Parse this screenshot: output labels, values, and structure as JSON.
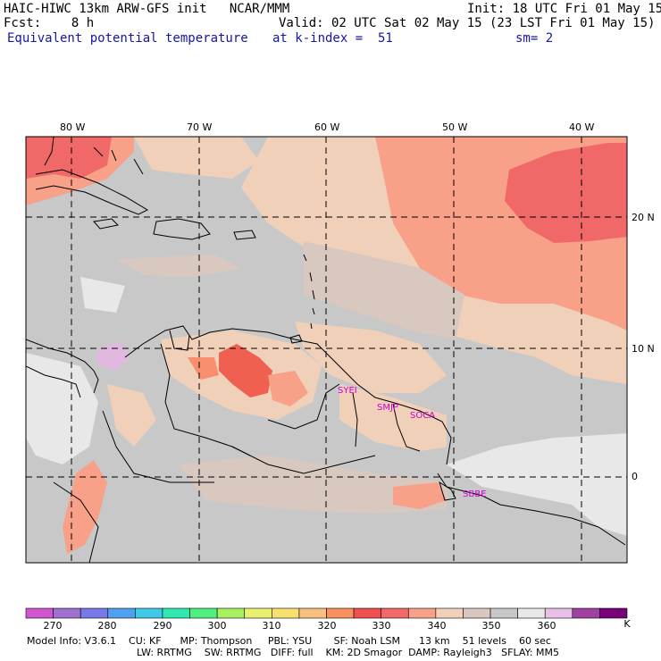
{
  "header": {
    "line1_left": "HAIC-HIWC 13km ARW-GFS init   NCAR/MMM",
    "line1_right": "Init: 18 UTC Fri 01 May 15",
    "line2_left": "Fcst:    8 h",
    "line2_right": "Valid: 02 UTC Sat 02 May 15 (23 LST Fri 01 May 15)",
    "field_name": "Equivalent potential temperature",
    "level": "at k-index =  51",
    "smoothing": "sm= 2"
  },
  "map": {
    "lon_labels": [
      "80 W",
      "70 W",
      "60 W",
      "50 W",
      "40 W"
    ],
    "lat_labels": [
      "20 N",
      "10 N",
      "0"
    ],
    "stations": [
      "SYEI",
      "SMJP",
      "SOCA",
      "SBBE"
    ]
  },
  "colorbar": {
    "unit": "K",
    "colors": [
      "#d055d0",
      "#a070d0",
      "#7878e8",
      "#50a0f0",
      "#40c8e8",
      "#30e8b0",
      "#50f080",
      "#a8f060",
      "#e8f070",
      "#f8e070",
      "#f8c080",
      "#f89060",
      "#f05050",
      "#f06868",
      "#f8a088",
      "#f0d0b8",
      "#d8c8c0",
      "#c8c8c8",
      "#e8e8e8",
      "#e8c0e8",
      "#a040a0",
      "#780078"
    ],
    "labels": [
      "270",
      "280",
      "290",
      "300",
      "310",
      "320",
      "330",
      "340",
      "350",
      "360"
    ]
  },
  "model_info": {
    "line1": "Model Info: V3.6.1    CU: KF      MP: Thompson     PBL: YSU       SF: Noah LSM      13 km    51 levels    60 sec",
    "line2": "LW: RRTMG    SW: RRTMG   DIFF: full    KM: 2D Smagor  DAMP: Rayleigh3   SFLAY: MM5"
  }
}
